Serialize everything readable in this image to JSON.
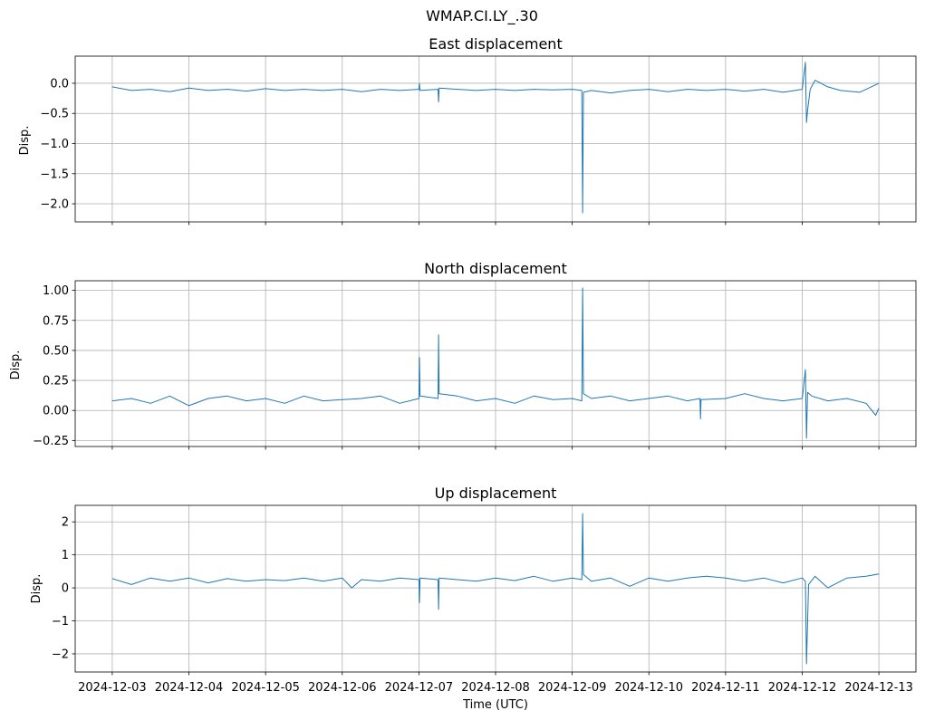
{
  "figure": {
    "suptitle": "WMAP.CI.LY_.30",
    "xlabel": "Time (UTC)",
    "grid": true,
    "line_color": "#1f77b4"
  },
  "chart_data": [
    {
      "type": "line",
      "title": "East displacement",
      "ylabel": "Disp.",
      "x_ticks": [
        "2024-12-03",
        "2024-12-04",
        "2024-12-05",
        "2024-12-06",
        "2024-12-07",
        "2024-12-08",
        "2024-12-09",
        "2024-12-10",
        "2024-12-11",
        "2024-12-12",
        "2024-12-13"
      ],
      "xlim": [
        "2024-12-02T12:24",
        "2024-12-13T11:36"
      ],
      "ylim": [
        -2.3,
        0.45
      ],
      "y_ticks": [
        0.0,
        -0.5,
        -1.0,
        -1.5,
        -2.0
      ],
      "y_tick_labels": [
        "0.0",
        "−0.5",
        "−1.0",
        "−1.5",
        "−2.0"
      ],
      "x": [
        "2024-12-03T00:00",
        "2024-12-03T06:00",
        "2024-12-03T12:00",
        "2024-12-03T18:00",
        "2024-12-04T00:00",
        "2024-12-04T06:00",
        "2024-12-04T12:00",
        "2024-12-04T18:00",
        "2024-12-05T00:00",
        "2024-12-05T06:00",
        "2024-12-05T12:00",
        "2024-12-05T18:00",
        "2024-12-06T00:00",
        "2024-12-06T06:00",
        "2024-12-06T12:00",
        "2024-12-06T18:00",
        "2024-12-07T00:00",
        "2024-12-07T00:10",
        "2024-12-07T00:20",
        "2024-12-07T06:00",
        "2024-12-07T06:10",
        "2024-12-07T06:20",
        "2024-12-07T12:00",
        "2024-12-07T18:00",
        "2024-12-08T00:00",
        "2024-12-08T06:00",
        "2024-12-08T12:00",
        "2024-12-08T18:00",
        "2024-12-09T00:00",
        "2024-12-09T03:00",
        "2024-12-09T03:15",
        "2024-12-09T03:30",
        "2024-12-09T06:00",
        "2024-12-09T12:00",
        "2024-12-09T18:00",
        "2024-12-10T00:00",
        "2024-12-10T06:00",
        "2024-12-10T12:00",
        "2024-12-10T18:00",
        "2024-12-11T00:00",
        "2024-12-11T06:00",
        "2024-12-11T12:00",
        "2024-12-11T18:00",
        "2024-12-12T00:00",
        "2024-12-12T01:00",
        "2024-12-12T01:20",
        "2024-12-12T01:40",
        "2024-12-12T02:30",
        "2024-12-12T04:00",
        "2024-12-12T08:00",
        "2024-12-12T12:00",
        "2024-12-12T18:00",
        "2024-12-13T00:00"
      ],
      "y": [
        -0.06,
        -0.12,
        -0.1,
        -0.14,
        -0.08,
        -0.12,
        -0.1,
        -0.13,
        -0.09,
        -0.12,
        -0.1,
        -0.12,
        -0.1,
        -0.14,
        -0.1,
        -0.12,
        -0.1,
        -0.01,
        -0.12,
        -0.1,
        -0.31,
        -0.08,
        -0.1,
        -0.12,
        -0.1,
        -0.12,
        -0.1,
        -0.11,
        -0.1,
        -0.12,
        -2.15,
        -0.15,
        -0.12,
        -0.16,
        -0.12,
        -0.1,
        -0.14,
        -0.1,
        -0.12,
        -0.1,
        -0.13,
        -0.1,
        -0.15,
        -0.1,
        0.35,
        -0.65,
        -0.45,
        -0.1,
        0.05,
        -0.06,
        -0.12,
        -0.15,
        0.0
      ]
    },
    {
      "type": "line",
      "title": "North displacement",
      "ylabel": "Disp.",
      "x_ticks": [
        "2024-12-03",
        "2024-12-04",
        "2024-12-05",
        "2024-12-06",
        "2024-12-07",
        "2024-12-08",
        "2024-12-09",
        "2024-12-10",
        "2024-12-11",
        "2024-12-12",
        "2024-12-13"
      ],
      "xlim": [
        "2024-12-02T12:24",
        "2024-12-13T11:36"
      ],
      "ylim": [
        -0.3,
        1.08
      ],
      "y_ticks": [
        -0.25,
        0.0,
        0.25,
        0.5,
        0.75,
        1.0
      ],
      "y_tick_labels": [
        "−0.25",
        "0.00",
        "0.25",
        "0.50",
        "0.75",
        "1.00"
      ],
      "x": [
        "2024-12-03T00:00",
        "2024-12-03T06:00",
        "2024-12-03T12:00",
        "2024-12-03T18:00",
        "2024-12-04T00:00",
        "2024-12-04T06:00",
        "2024-12-04T12:00",
        "2024-12-04T18:00",
        "2024-12-05T00:00",
        "2024-12-05T06:00",
        "2024-12-05T12:00",
        "2024-12-05T18:00",
        "2024-12-06T00:00",
        "2024-12-06T06:00",
        "2024-12-06T12:00",
        "2024-12-06T18:00",
        "2024-12-07T00:00",
        "2024-12-07T00:10",
        "2024-12-07T00:20",
        "2024-12-07T06:00",
        "2024-12-07T06:10",
        "2024-12-07T06:20",
        "2024-12-07T12:00",
        "2024-12-07T18:00",
        "2024-12-08T00:00",
        "2024-12-08T06:00",
        "2024-12-08T12:00",
        "2024-12-08T18:00",
        "2024-12-09T00:00",
        "2024-12-09T03:00",
        "2024-12-09T03:15",
        "2024-12-09T03:30",
        "2024-12-09T06:00",
        "2024-12-09T12:00",
        "2024-12-09T18:00",
        "2024-12-10T00:00",
        "2024-12-10T06:00",
        "2024-12-10T12:00",
        "2024-12-10T16:00",
        "2024-12-10T16:10",
        "2024-12-10T16:20",
        "2024-12-11T00:00",
        "2024-12-11T06:00",
        "2024-12-11T12:00",
        "2024-12-11T18:00",
        "2024-12-12T00:00",
        "2024-12-12T01:00",
        "2024-12-12T01:20",
        "2024-12-12T01:40",
        "2024-12-12T03:00",
        "2024-12-12T08:00",
        "2024-12-12T14:00",
        "2024-12-12T20:00",
        "2024-12-12T23:00",
        "2024-12-13T00:00"
      ],
      "y": [
        0.08,
        0.1,
        0.06,
        0.12,
        0.04,
        0.1,
        0.12,
        0.08,
        0.1,
        0.06,
        0.12,
        0.08,
        0.09,
        0.1,
        0.12,
        0.06,
        0.1,
        0.44,
        0.12,
        0.1,
        0.63,
        0.14,
        0.12,
        0.08,
        0.1,
        0.06,
        0.12,
        0.09,
        0.1,
        0.08,
        1.02,
        0.14,
        0.1,
        0.12,
        0.08,
        0.1,
        0.12,
        0.08,
        0.1,
        -0.07,
        0.09,
        0.1,
        0.14,
        0.1,
        0.08,
        0.1,
        0.34,
        -0.23,
        0.15,
        0.12,
        0.08,
        0.1,
        0.06,
        -0.04,
        0.02
      ]
    },
    {
      "type": "line",
      "title": "Up displacement",
      "ylabel": "Disp.",
      "x_ticks": [
        "2024-12-03",
        "2024-12-04",
        "2024-12-05",
        "2024-12-06",
        "2024-12-07",
        "2024-12-08",
        "2024-12-09",
        "2024-12-10",
        "2024-12-11",
        "2024-12-12",
        "2024-12-13"
      ],
      "xlim": [
        "2024-12-02T12:24",
        "2024-12-13T11:36"
      ],
      "ylim": [
        -2.55,
        2.5
      ],
      "y_ticks": [
        2,
        1,
        0,
        -1,
        -2
      ],
      "y_tick_labels": [
        "2",
        "1",
        "0",
        "−1",
        "−2"
      ],
      "x": [
        "2024-12-03T00:00",
        "2024-12-03T06:00",
        "2024-12-03T12:00",
        "2024-12-03T18:00",
        "2024-12-04T00:00",
        "2024-12-04T06:00",
        "2024-12-04T12:00",
        "2024-12-04T18:00",
        "2024-12-05T00:00",
        "2024-12-05T06:00",
        "2024-12-05T12:00",
        "2024-12-05T18:00",
        "2024-12-06T00:00",
        "2024-12-06T03:00",
        "2024-12-06T06:00",
        "2024-12-06T12:00",
        "2024-12-06T18:00",
        "2024-12-07T00:00",
        "2024-12-07T00:10",
        "2024-12-07T00:20",
        "2024-12-07T06:00",
        "2024-12-07T06:10",
        "2024-12-07T06:20",
        "2024-12-07T12:00",
        "2024-12-07T18:00",
        "2024-12-08T00:00",
        "2024-12-08T06:00",
        "2024-12-08T12:00",
        "2024-12-08T18:00",
        "2024-12-09T00:00",
        "2024-12-09T03:00",
        "2024-12-09T03:15",
        "2024-12-09T03:30",
        "2024-12-09T06:00",
        "2024-12-09T12:00",
        "2024-12-09T18:00",
        "2024-12-10T00:00",
        "2024-12-10T06:00",
        "2024-12-10T12:00",
        "2024-12-10T18:00",
        "2024-12-11T00:00",
        "2024-12-11T06:00",
        "2024-12-11T12:00",
        "2024-12-11T18:00",
        "2024-12-12T00:00",
        "2024-12-12T01:00",
        "2024-12-12T01:20",
        "2024-12-12T02:00",
        "2024-12-12T04:00",
        "2024-12-12T08:00",
        "2024-12-12T14:00",
        "2024-12-12T20:00",
        "2024-12-13T00:00"
      ],
      "y": [
        0.28,
        0.1,
        0.3,
        0.2,
        0.3,
        0.15,
        0.28,
        0.2,
        0.25,
        0.22,
        0.3,
        0.2,
        0.3,
        0.0,
        0.25,
        0.2,
        0.3,
        0.25,
        -0.45,
        0.3,
        0.25,
        -0.65,
        0.3,
        0.25,
        0.2,
        0.3,
        0.22,
        0.35,
        0.2,
        0.3,
        0.25,
        2.25,
        0.4,
        0.2,
        0.3,
        0.05,
        0.3,
        0.2,
        0.3,
        0.35,
        0.3,
        0.2,
        0.3,
        0.15,
        0.3,
        0.2,
        -2.3,
        0.1,
        0.35,
        0.0,
        0.3,
        0.35,
        0.42
      ]
    }
  ]
}
